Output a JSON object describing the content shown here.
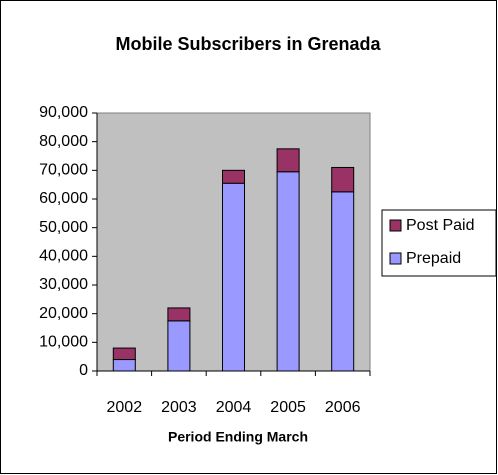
{
  "chart_data": {
    "type": "stacked_bar",
    "title": "Mobile Subscribers in Grenada",
    "x_label": "Period Ending March",
    "categories": [
      "2002",
      "2003",
      "2004",
      "2005",
      "2006"
    ],
    "series": [
      {
        "name": "Prepaid",
        "color": "#9999ff",
        "values": [
          4000,
          17500,
          65500,
          69500,
          62500
        ]
      },
      {
        "name": "Post Paid",
        "color": "#993366",
        "values": [
          4000,
          4500,
          4500,
          8000,
          8500
        ]
      }
    ],
    "ylim": [
      0,
      90000
    ],
    "yticks": [
      0,
      {
        "value": 10000,
        "label": "10,000"
      },
      {
        "value": 20000,
        "label": "20,000"
      },
      {
        "value": 30000,
        "label": "30,000"
      },
      {
        "value": 40000,
        "label": "40,000"
      },
      {
        "value": 50000,
        "label": "50,000"
      },
      {
        "value": 60000,
        "label": "60,000"
      },
      {
        "value": 70000,
        "label": "70,000"
      },
      {
        "value": 80000,
        "label": "80,000"
      },
      {
        "value": 90000,
        "label": "90,000"
      }
    ],
    "grid": false,
    "legend": "right",
    "plot_background": "#c0c0c0"
  }
}
